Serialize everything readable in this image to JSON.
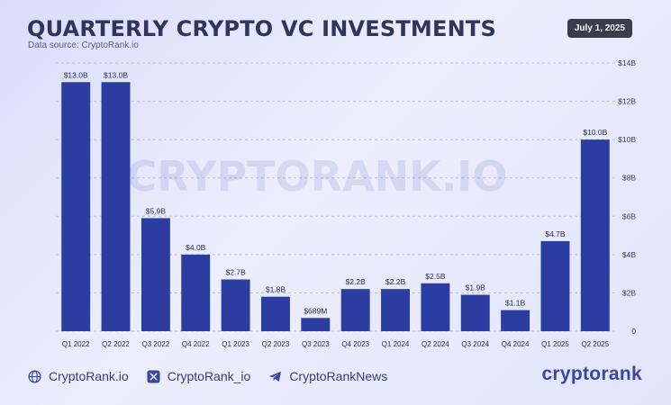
{
  "header": {
    "title": "QUARTERLY CRYPTO VC INVESTMENTS",
    "subtitle": "Data source: CryptoRank.io",
    "date_badge": "July 1, 2025"
  },
  "watermark": "CRYPTORANK.IO",
  "footer": {
    "items": [
      {
        "icon": "globe-icon",
        "label": "CryptoRank.io"
      },
      {
        "icon": "x-logo-icon",
        "label": "CryptoRank_io"
      },
      {
        "icon": "telegram-icon",
        "label": "CryptoRankNews"
      }
    ],
    "logo": "cryptorank"
  },
  "colors": {
    "bar": "#2b3da0",
    "accent": "#3b45a3",
    "badge_bg": "#3a3d4e"
  },
  "chart_data": {
    "type": "bar",
    "categories": [
      "Q1 2022",
      "Q2 2022",
      "Q3 2022",
      "Q4 2022",
      "Q1 2023",
      "Q2 2023",
      "Q3 2023",
      "Q4 2023",
      "Q1 2024",
      "Q2 2024",
      "Q3 2024",
      "Q4 2024",
      "Q1 2025",
      "Q2 2025"
    ],
    "values": [
      13.0,
      13.0,
      5.9,
      4.0,
      2.7,
      1.8,
      0.689,
      2.2,
      2.2,
      2.5,
      1.9,
      1.1,
      4.7,
      10.0
    ],
    "data_labels": [
      "$13.0B",
      "$13.0B",
      "$5.9B",
      "$4.0B",
      "$2.7B",
      "$1.8B",
      "$689M",
      "$2.2B",
      "$2.2B",
      "$2.5B",
      "$1.9B",
      "$1.1B",
      "$4.7B",
      "$10.0B"
    ],
    "y_ticks": [
      0,
      2,
      4,
      6,
      8,
      10,
      12,
      14
    ],
    "y_tick_labels": [
      "0",
      "$2B",
      "$4B",
      "$6B",
      "$8B",
      "$10B",
      "$12B",
      "$14B"
    ],
    "ylim": [
      0,
      14
    ],
    "y_axis_side": "right",
    "grid": true
  }
}
